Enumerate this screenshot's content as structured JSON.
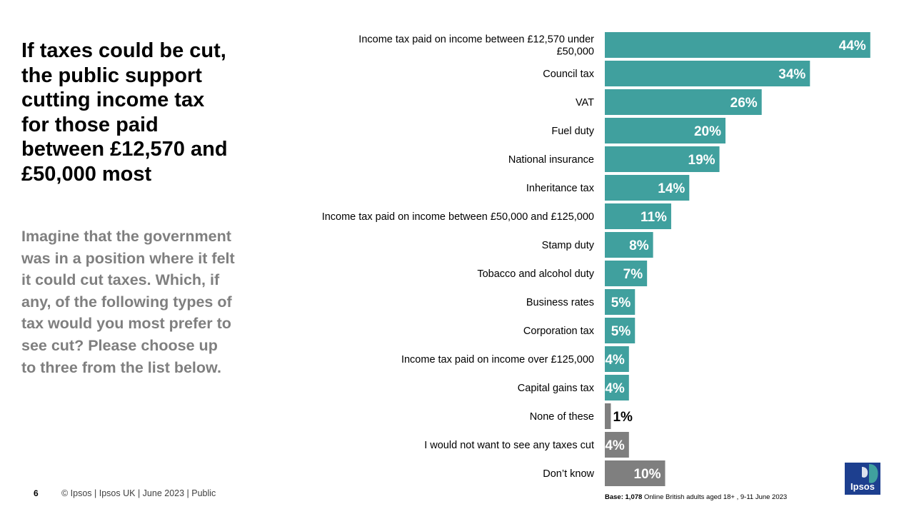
{
  "title": "If taxes could be cut, the public support cutting income tax for those paid between £12,570 and £50,000 most",
  "question": "Imagine that the government was in a position where it felt it could cut taxes. Which, if any, of the following types of tax would you most prefer to see cut? Please choose up to three from the list below.",
  "footer": {
    "page_number": "6",
    "text": "© Ipsos |  Ipsos UK | June  2023 | Public"
  },
  "base_note": {
    "label": "Base:",
    "count": "1,078",
    "text": "Online British adults aged 18+ , 9-11 June 2023"
  },
  "logo": {
    "text": "Ipsos",
    "icon": "ipsos-logo-icon"
  },
  "colors": {
    "teal": "#40a09e",
    "grey": "#7f7f7f"
  },
  "chart_data": {
    "type": "bar",
    "orientation": "horizontal",
    "categories": [
      [
        "Income tax paid on income between £12,570 under",
        "£50,000"
      ],
      [
        "Council tax"
      ],
      [
        "VAT"
      ],
      [
        "Fuel duty"
      ],
      [
        "National insurance"
      ],
      [
        "Inheritance tax"
      ],
      [
        "Income tax paid on income between £50,000 and £125,000"
      ],
      [
        "Stamp duty"
      ],
      [
        "Tobacco and alcohol duty"
      ],
      [
        "Business rates"
      ],
      [
        "Corporation tax"
      ],
      [
        "Income tax paid on income over £125,000"
      ],
      [
        "Capital gains tax"
      ],
      [
        "None of these"
      ],
      [
        "I would not want to see any taxes cut"
      ],
      [
        "Don’t know"
      ]
    ],
    "values": [
      44,
      34,
      26,
      20,
      19,
      14,
      11,
      8,
      7,
      5,
      5,
      4,
      4,
      1,
      4,
      10
    ],
    "labels": [
      "44%",
      "34%",
      "26%",
      "20%",
      "19%",
      "14%",
      "11%",
      "8%",
      "7%",
      "5%",
      "5%",
      "4%",
      "4%",
      "1%",
      "4%",
      "10%"
    ],
    "bar_colors": [
      "teal",
      "teal",
      "teal",
      "teal",
      "teal",
      "teal",
      "teal",
      "teal",
      "teal",
      "teal",
      "teal",
      "teal",
      "teal",
      "grey",
      "grey",
      "grey"
    ],
    "unit": "%",
    "grid": false,
    "legend": "none"
  }
}
